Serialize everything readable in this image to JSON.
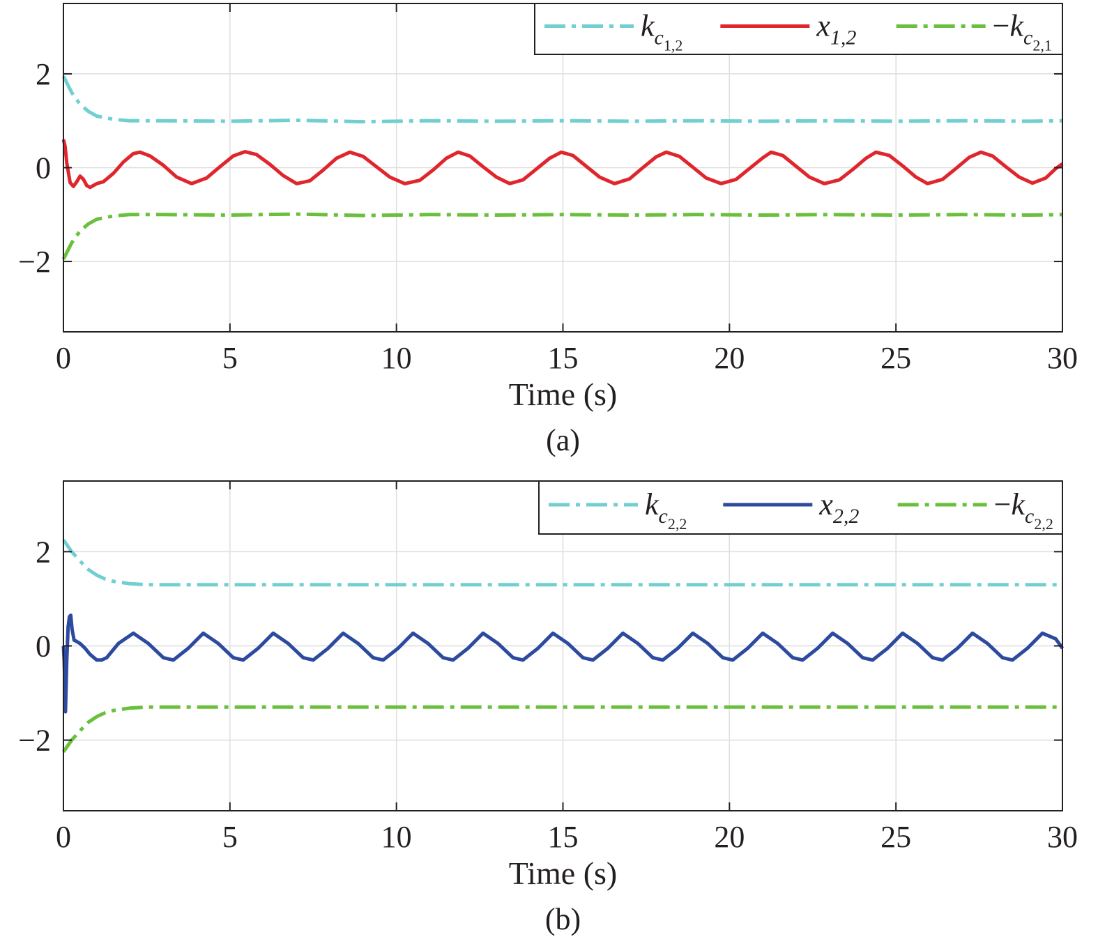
{
  "chart_data": [
    {
      "type": "line",
      "panel_label": "(a)",
      "xlabel": "Time (s)",
      "ylabel": "",
      "xlim": [
        0,
        30
      ],
      "ylim": [
        -3.5,
        3.5
      ],
      "xticks": [
        "0",
        "5",
        "10",
        "15",
        "20",
        "25",
        "30"
      ],
      "yticks": [
        "2",
        "0",
        "−2"
      ],
      "grid": true,
      "legend_position": "top-right",
      "series": [
        {
          "name": "k c1,2",
          "legend": {
            "lead": "",
            "base": "k",
            "sub": "c",
            "subsub": "1,2"
          },
          "color": "#72cfd1",
          "dash": "dash-dot",
          "x": [
            0,
            0.25,
            0.5,
            0.75,
            1.0,
            1.5,
            2.0,
            3,
            5,
            7,
            9,
            11,
            13,
            15,
            17,
            19,
            21,
            23,
            25,
            27,
            29,
            30
          ],
          "values": [
            1.95,
            1.6,
            1.35,
            1.2,
            1.1,
            1.03,
            1.0,
            1.0,
            0.99,
            1.01,
            0.98,
            1.0,
            0.99,
            1.0,
            0.99,
            1.0,
            0.99,
            1.0,
            0.99,
            1.0,
            0.99,
            1.0
          ]
        },
        {
          "name": "x 1,2",
          "legend": {
            "lead": "",
            "base": "x",
            "sub": "1,2",
            "subsub": ""
          },
          "color": "#e0262d",
          "dash": "solid",
          "x": [
            0,
            0.05,
            0.1,
            0.2,
            0.3,
            0.4,
            0.5,
            0.6,
            0.7,
            0.8,
            0.9,
            1.0,
            1.2,
            1.5,
            1.8,
            2.1,
            2.3,
            2.6,
            3.0,
            3.4,
            3.85,
            4.3,
            4.7,
            5.1,
            5.45,
            5.8,
            6.2,
            6.6,
            7.0,
            7.4,
            7.8,
            8.2,
            8.6,
            9.0,
            9.4,
            9.8,
            10.25,
            10.7,
            11.1,
            11.5,
            11.85,
            12.2,
            12.6,
            13.0,
            13.4,
            13.8,
            14.2,
            14.6,
            14.95,
            15.3,
            15.7,
            16.1,
            16.55,
            17.0,
            17.4,
            17.8,
            18.1,
            18.5,
            18.9,
            19.3,
            19.75,
            20.2,
            20.6,
            21.0,
            21.25,
            21.6,
            22.0,
            22.4,
            22.85,
            23.3,
            23.7,
            24.1,
            24.4,
            24.8,
            25.2,
            25.6,
            25.95,
            26.4,
            26.8,
            27.2,
            27.55,
            27.9,
            28.3,
            28.7,
            29.1,
            29.5,
            29.8,
            30.0
          ],
          "values": [
            0.6,
            0.45,
            0.1,
            -0.32,
            -0.4,
            -0.3,
            -0.18,
            -0.25,
            -0.38,
            -0.42,
            -0.38,
            -0.34,
            -0.3,
            -0.12,
            0.12,
            0.3,
            0.33,
            0.25,
            0.05,
            -0.2,
            -0.34,
            -0.22,
            0.02,
            0.25,
            0.34,
            0.28,
            0.07,
            -0.17,
            -0.34,
            -0.28,
            -0.05,
            0.2,
            0.33,
            0.24,
            0.02,
            -0.2,
            -0.34,
            -0.27,
            -0.05,
            0.2,
            0.33,
            0.25,
            0.02,
            -0.2,
            -0.34,
            -0.26,
            -0.03,
            0.2,
            0.33,
            0.26,
            0.03,
            -0.2,
            -0.34,
            -0.24,
            0.0,
            0.23,
            0.33,
            0.24,
            0.01,
            -0.22,
            -0.34,
            -0.25,
            -0.02,
            0.21,
            0.33,
            0.26,
            0.03,
            -0.2,
            -0.34,
            -0.26,
            -0.04,
            0.2,
            0.33,
            0.26,
            0.04,
            -0.2,
            -0.34,
            -0.25,
            -0.02,
            0.22,
            0.33,
            0.25,
            0.02,
            -0.2,
            -0.33,
            -0.22,
            -0.02,
            0.08
          ]
        },
        {
          "name": "−k c2,1",
          "legend": {
            "lead": "−",
            "base": "k",
            "sub": "c",
            "subsub": "2,1"
          },
          "color": "#6abf3c",
          "dash": "dash-dot",
          "x": [
            0,
            0.25,
            0.5,
            0.75,
            1.0,
            1.5,
            2.0,
            3,
            5,
            7,
            9,
            11,
            13,
            15,
            17,
            19,
            21,
            23,
            25,
            27,
            29,
            30
          ],
          "values": [
            -1.95,
            -1.6,
            -1.35,
            -1.2,
            -1.1,
            -1.03,
            -1.0,
            -1.0,
            -1.01,
            -0.99,
            -1.02,
            -1.0,
            -1.01,
            -1.0,
            -1.01,
            -1.0,
            -1.01,
            -1.0,
            -1.01,
            -1.0,
            -1.01,
            -1.0
          ]
        }
      ]
    },
    {
      "type": "line",
      "panel_label": "(b)",
      "xlabel": "Time (s)",
      "ylabel": "",
      "xlim": [
        0,
        30
      ],
      "ylim": [
        -3.5,
        3.5
      ],
      "xticks": [
        "0",
        "5",
        "10",
        "15",
        "20",
        "25",
        "30"
      ],
      "yticks": [
        "2",
        "0",
        "−2"
      ],
      "grid": true,
      "legend_position": "top-right",
      "series": [
        {
          "name": "k c2,2",
          "legend": {
            "lead": "",
            "base": "k",
            "sub": "c",
            "subsub": "2,2"
          },
          "color": "#72cfd1",
          "dash": "dash-dot",
          "x": [
            0,
            0.25,
            0.5,
            0.75,
            1.0,
            1.25,
            1.5,
            2.0,
            2.5,
            3,
            5,
            10,
            15,
            20,
            25,
            30
          ],
          "values": [
            2.25,
            2.0,
            1.8,
            1.62,
            1.5,
            1.42,
            1.37,
            1.32,
            1.3,
            1.3,
            1.3,
            1.3,
            1.3,
            1.3,
            1.3,
            1.3
          ]
        },
        {
          "name": "x 2,2",
          "legend": {
            "lead": "",
            "base": "x",
            "sub": "2,2",
            "subsub": ""
          },
          "color": "#2c4a9e",
          "dash": "solid",
          "x": [
            0,
            0.02,
            0.06,
            0.1,
            0.14,
            0.18,
            0.22,
            0.26,
            0.32,
            0.38,
            0.5,
            0.65,
            0.8,
            1.0,
            1.15,
            1.3,
            1.65,
            2.1,
            2.55,
            3.0,
            3.3,
            3.75,
            4.2,
            4.65,
            5.1,
            5.4,
            5.85,
            6.3,
            6.75,
            7.2,
            7.5,
            7.95,
            8.4,
            8.85,
            9.3,
            9.6,
            10.05,
            10.5,
            10.95,
            11.4,
            11.7,
            12.15,
            12.6,
            13.05,
            13.5,
            13.8,
            14.25,
            14.7,
            15.15,
            15.6,
            15.9,
            16.35,
            16.8,
            17.25,
            17.7,
            18.0,
            18.45,
            18.9,
            19.35,
            19.8,
            20.1,
            20.55,
            21.0,
            21.45,
            21.9,
            22.2,
            22.65,
            23.1,
            23.55,
            24.0,
            24.3,
            24.75,
            25.2,
            25.65,
            26.1,
            26.4,
            26.85,
            27.3,
            27.75,
            28.2,
            28.5,
            28.95,
            29.4,
            29.8,
            30.0
          ],
          "values": [
            0.0,
            -0.3,
            -1.4,
            -0.3,
            0.4,
            0.62,
            0.65,
            0.35,
            0.12,
            0.1,
            0.05,
            -0.05,
            -0.18,
            -0.3,
            -0.3,
            -0.25,
            0.05,
            0.27,
            0.05,
            -0.25,
            -0.3,
            -0.05,
            0.27,
            0.05,
            -0.25,
            -0.3,
            -0.05,
            0.27,
            0.05,
            -0.25,
            -0.3,
            -0.05,
            0.27,
            0.05,
            -0.25,
            -0.3,
            -0.05,
            0.27,
            0.05,
            -0.25,
            -0.3,
            -0.05,
            0.27,
            0.05,
            -0.25,
            -0.3,
            -0.05,
            0.27,
            0.05,
            -0.25,
            -0.3,
            -0.05,
            0.27,
            0.05,
            -0.25,
            -0.3,
            -0.05,
            0.27,
            0.05,
            -0.25,
            -0.3,
            -0.05,
            0.27,
            0.05,
            -0.25,
            -0.3,
            -0.05,
            0.27,
            0.05,
            -0.25,
            -0.3,
            -0.05,
            0.27,
            0.05,
            -0.25,
            -0.3,
            -0.05,
            0.27,
            0.05,
            -0.25,
            -0.3,
            -0.05,
            0.27,
            0.15,
            -0.05
          ]
        },
        {
          "name": "−k c2,2",
          "legend": {
            "lead": "−",
            "base": "k",
            "sub": "c",
            "subsub": "2,2"
          },
          "color": "#6abf3c",
          "dash": "dash-dot",
          "x": [
            0,
            0.25,
            0.5,
            0.75,
            1.0,
            1.25,
            1.5,
            2.0,
            2.5,
            3,
            5,
            10,
            15,
            20,
            25,
            30
          ],
          "values": [
            -2.25,
            -2.0,
            -1.8,
            -1.62,
            -1.5,
            -1.42,
            -1.37,
            -1.32,
            -1.3,
            -1.3,
            -1.3,
            -1.3,
            -1.3,
            -1.3,
            -1.3,
            -1.3
          ]
        }
      ]
    }
  ]
}
